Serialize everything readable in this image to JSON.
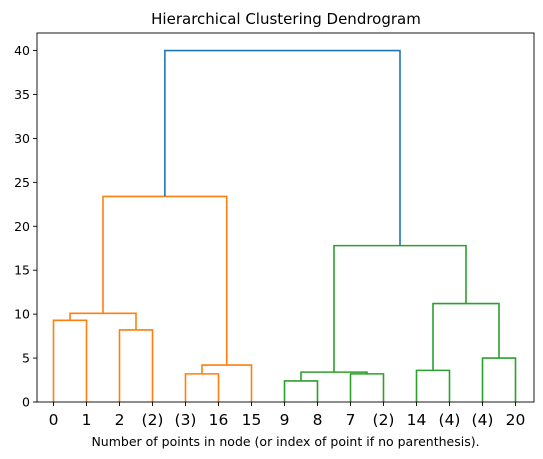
{
  "chart_data": {
    "type": "dendrogram",
    "title": "Hierarchical Clustering Dendrogram",
    "xlabel": "Number of points in node (or index of point if no parenthesis).",
    "ylabel": "",
    "ylim": [
      0,
      42
    ],
    "yticks": [
      0,
      5,
      10,
      15,
      20,
      25,
      30,
      35,
      40
    ],
    "grid": false,
    "leaves": [
      "0",
      "1",
      "2",
      "(2)",
      "(3)",
      "16",
      "15",
      "9",
      "8",
      "7",
      "(2)",
      "14",
      "(4)",
      "(4)",
      "20"
    ],
    "colors": {
      "root": "#1f77b4",
      "cluster_1": "#ff7f0e",
      "cluster_2": "#2ca02c"
    },
    "merges": [
      {
        "x": [
          0,
          1
        ],
        "height": 9.3,
        "heights": [
          0,
          0
        ],
        "color": "cluster_1"
      },
      {
        "x": [
          2,
          3
        ],
        "height": 8.2,
        "heights": [
          0,
          0
        ],
        "color": "cluster_1"
      },
      {
        "x": [
          0.5,
          2.5
        ],
        "height": 10.1,
        "heights": [
          9.3,
          8.2
        ],
        "color": "cluster_1"
      },
      {
        "x": [
          4,
          5
        ],
        "height": 3.2,
        "heights": [
          0,
          0
        ],
        "color": "cluster_1"
      },
      {
        "x": [
          4.5,
          6
        ],
        "height": 4.2,
        "heights": [
          3.2,
          0
        ],
        "color": "cluster_1"
      },
      {
        "x": [
          1.5,
          5.25
        ],
        "height": 23.4,
        "heights": [
          10.1,
          4.2
        ],
        "color": "cluster_1"
      },
      {
        "x": [
          7,
          8
        ],
        "height": 2.4,
        "heights": [
          0,
          0
        ],
        "color": "cluster_2"
      },
      {
        "x": [
          9,
          10
        ],
        "height": 3.2,
        "heights": [
          0,
          0
        ],
        "color": "cluster_2"
      },
      {
        "x": [
          7.5,
          9.5
        ],
        "height": 3.4,
        "heights": [
          2.4,
          3.2
        ],
        "color": "cluster_2"
      },
      {
        "x": [
          11,
          12
        ],
        "height": 3.6,
        "heights": [
          0,
          0
        ],
        "color": "cluster_2"
      },
      {
        "x": [
          13,
          14
        ],
        "height": 5.0,
        "heights": [
          0,
          0
        ],
        "color": "cluster_2"
      },
      {
        "x": [
          11.5,
          13.5
        ],
        "height": 11.2,
        "heights": [
          3.6,
          5.0
        ],
        "color": "cluster_2"
      },
      {
        "x": [
          8.5,
          12.5
        ],
        "height": 17.8,
        "heights": [
          3.4,
          11.2
        ],
        "color": "cluster_2"
      },
      {
        "x": [
          3.375,
          10.5
        ],
        "height": 40.0,
        "heights": [
          23.4,
          17.8
        ],
        "color": "root"
      }
    ]
  }
}
